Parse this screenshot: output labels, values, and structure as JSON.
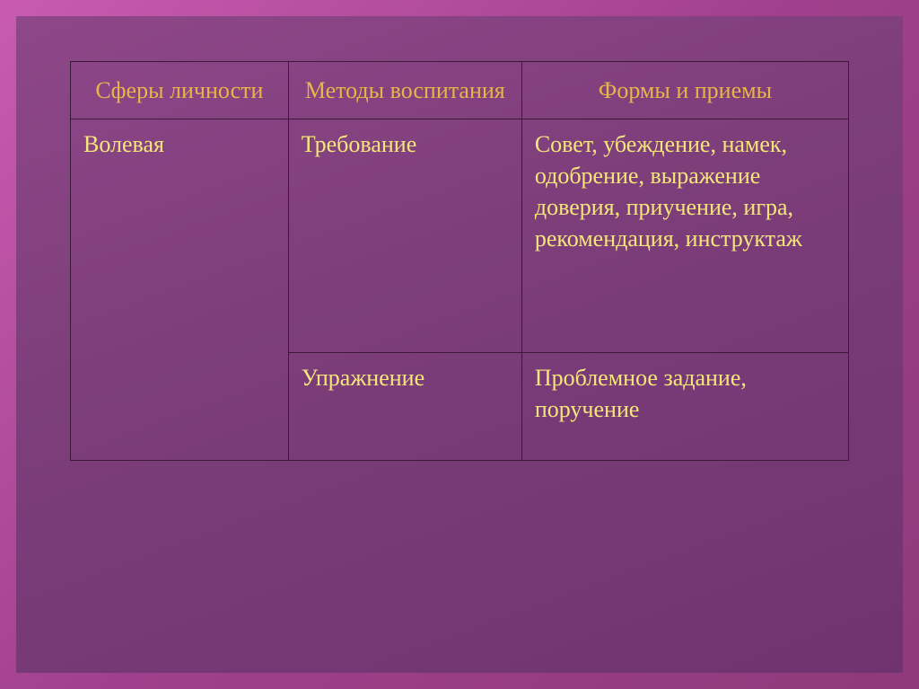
{
  "table": {
    "headers": {
      "col1": "Сферы личности",
      "col2": "Методы воспитания",
      "col3": "Формы и приемы"
    },
    "rows": [
      {
        "sphere": "Волевая",
        "method": "Требование",
        "forms": "Совет, убеждение, намек, одобрение, выражение доверия, приучение, игра, рекомендация, инструктаж"
      },
      {
        "method": "Упражнение",
        "forms": "Проблемное задание, поручение"
      }
    ]
  },
  "colors": {
    "outer_bg_start": "#c85bb0",
    "outer_bg_end": "#8e3a7a",
    "inner_bg_start": "#8e4789",
    "inner_bg_end": "#6f3470",
    "border": "#3a1a38",
    "header_text": "#e8b548",
    "body_text": "#f5e67a"
  }
}
